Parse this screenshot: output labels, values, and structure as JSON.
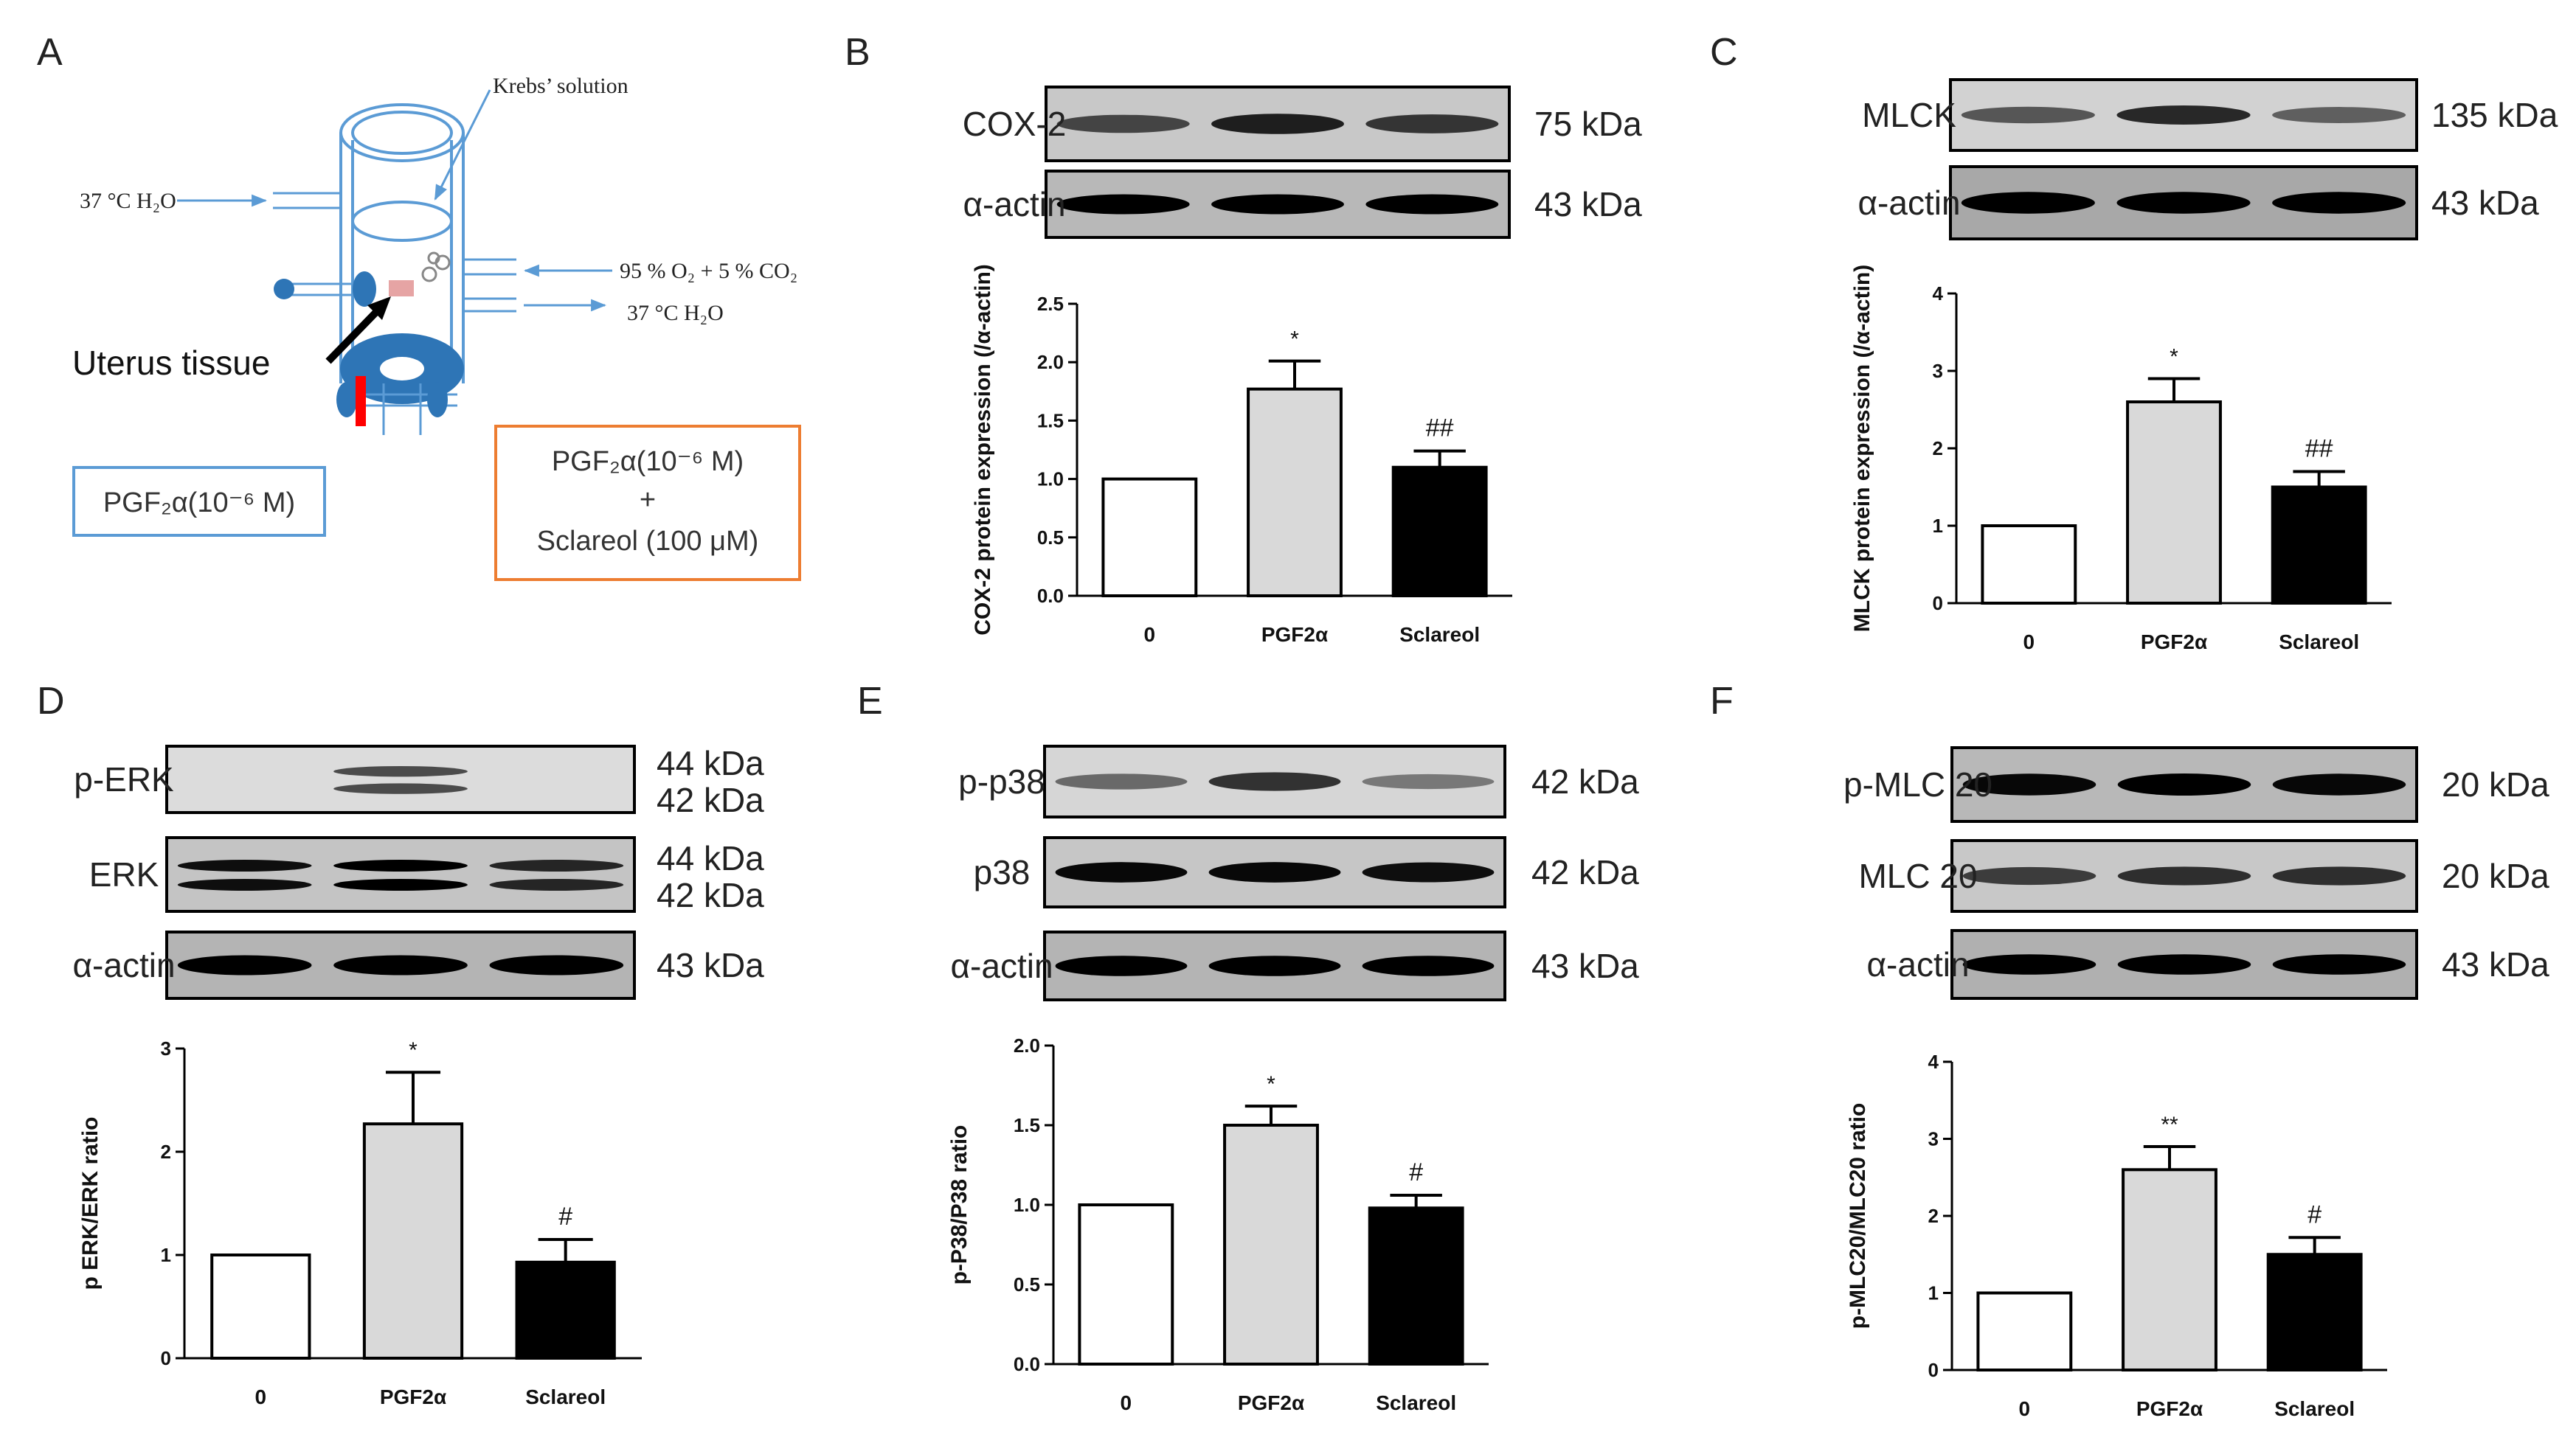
{
  "panel_letters": [
    "A",
    "B",
    "C",
    "D",
    "E",
    "F"
  ],
  "apparatus": {
    "krebs": "Krebs’ solution",
    "water_in": "37 °C H₂O",
    "gas": "95 % O₂ + 5 % CO₂",
    "water_out": "37 °C H₂O",
    "tissue": "Uterus tissue",
    "pgf_box": "PGF₂α(10⁻⁶ M)",
    "combo_line1": "PGF₂α(10⁻⁶ M)",
    "combo_plus": "+",
    "combo_line2": "Sclareol (100 μM)"
  },
  "colors": {
    "control_bar": "#ffffff",
    "pgf_bar": "#d9d9d9",
    "sclareol_bar": "#000000",
    "arrow_blue": "#5b9bd5",
    "pgf_box_border": "#5b9bd5",
    "combo_box_border": "#ed7d31",
    "blot_tissue_blue": "#2e75b6",
    "clamp_red": "#ff0000"
  },
  "blots": {
    "B": [
      {
        "label": "COX-2",
        "kda": [
          "75 kDa"
        ],
        "intensity": [
          0.55,
          0.8,
          0.65
        ],
        "double": false,
        "bg": "#c8c8c8"
      },
      {
        "label": "α-actin",
        "kda": [
          "43 kDa"
        ],
        "intensity": [
          1,
          1,
          1
        ],
        "double": false,
        "bg": "#b8b8b8"
      }
    ],
    "C": [
      {
        "label": "MLCK",
        "kda": [
          "135 kDa"
        ],
        "intensity": [
          0.45,
          0.75,
          0.4
        ],
        "double": false,
        "bg": "#d2d2d2"
      },
      {
        "label": "α-actin",
        "kda": [
          "43 kDa"
        ],
        "intensity": [
          1,
          1,
          1
        ],
        "double": false,
        "bg": "#a8a8a8"
      }
    ],
    "D": [
      {
        "label": "p-ERK",
        "kda": [
          "44 kDa",
          "42 kDa"
        ],
        "intensity": [
          0,
          0.55,
          0
        ],
        "double": true,
        "bg": "#dcdcdc"
      },
      {
        "label": "ERK",
        "kda": [
          "44 kDa",
          "42 kDa"
        ],
        "intensity": [
          0.9,
          1,
          0.75
        ],
        "double": true,
        "bg": "#c4c4c4"
      },
      {
        "label": "α-actin",
        "kda": [
          "43 kDa"
        ],
        "intensity": [
          1,
          1,
          1
        ],
        "double": false,
        "bg": "#b4b4b4"
      }
    ],
    "E": [
      {
        "label": "p-p38",
        "kda": [
          "42 kDa"
        ],
        "intensity": [
          0.35,
          0.7,
          0.25
        ],
        "double": false,
        "bg": "#d6d6d6"
      },
      {
        "label": "p38",
        "kda": [
          "42 kDa"
        ],
        "intensity": [
          0.95,
          0.95,
          0.9
        ],
        "double": false,
        "bg": "#c6c6c6"
      },
      {
        "label": "α-actin",
        "kda": [
          "43 kDa"
        ],
        "intensity": [
          1,
          1,
          1
        ],
        "double": false,
        "bg": "#b4b4b4"
      }
    ],
    "F": [
      {
        "label": "p-MLC 20",
        "kda": [
          "20 kDa"
        ],
        "intensity": [
          0.95,
          1,
          0.95
        ],
        "double": false,
        "bg": "#b8b8b8"
      },
      {
        "label": "MLC 20",
        "kda": [
          "20 kDa"
        ],
        "intensity": [
          0.6,
          0.7,
          0.7
        ],
        "double": false,
        "bg": "#c8c8c8"
      },
      {
        "label": "α-actin",
        "kda": [
          "43 kDa"
        ],
        "intensity": [
          1,
          1,
          1
        ],
        "double": false,
        "bg": "#b0b0b0"
      }
    ]
  },
  "chart_data": [
    {
      "panel": "B",
      "type": "bar",
      "categories": [
        "0",
        "PGF2α",
        "Sclareol"
      ],
      "values": [
        1.0,
        1.77,
        1.1
      ],
      "errors": [
        0,
        0.24,
        0.14
      ],
      "annotations": [
        "",
        "*",
        "##"
      ],
      "ylabel": "COX-2 protein expression (/α-actin)",
      "ylim": [
        0,
        2.5
      ],
      "yticks": [
        "0.0",
        "0.5",
        "1.0",
        "1.5",
        "2.0",
        "2.5"
      ]
    },
    {
      "panel": "C",
      "type": "bar",
      "categories": [
        "0",
        "PGF2α",
        "Sclareol"
      ],
      "values": [
        1.0,
        2.6,
        1.5
      ],
      "errors": [
        0,
        0.3,
        0.2
      ],
      "annotations": [
        "",
        "*",
        "##"
      ],
      "ylabel": "MLCK protein expression (/α-actin)",
      "ylim": [
        0,
        4
      ],
      "yticks": [
        "0",
        "1",
        "2",
        "3",
        "4"
      ]
    },
    {
      "panel": "D",
      "type": "bar",
      "categories": [
        "0",
        "PGF2α",
        "Sclareol"
      ],
      "values": [
        1.0,
        2.27,
        0.93
      ],
      "errors": [
        0,
        0.5,
        0.22
      ],
      "annotations": [
        "",
        "*",
        "#"
      ],
      "ylabel": "p ERK/ERK ratio",
      "ylim": [
        0,
        3
      ],
      "yticks": [
        "0",
        "1",
        "2",
        "3"
      ]
    },
    {
      "panel": "E",
      "type": "bar",
      "categories": [
        "0",
        "PGF2α",
        "Sclareol"
      ],
      "values": [
        1.0,
        1.5,
        0.98
      ],
      "errors": [
        0,
        0.12,
        0.08
      ],
      "annotations": [
        "",
        "*",
        "#"
      ],
      "ylabel": "p-P38/P38 ratio",
      "ylim": [
        0,
        2.0
      ],
      "yticks": [
        "0.0",
        "0.5",
        "1.0",
        "1.5",
        "2.0"
      ]
    },
    {
      "panel": "F",
      "type": "bar",
      "categories": [
        "0",
        "PGF2α",
        "Sclareol"
      ],
      "values": [
        1.0,
        2.6,
        1.5
      ],
      "errors": [
        0,
        0.3,
        0.22
      ],
      "annotations": [
        "",
        "**",
        "#"
      ],
      "ylabel": "p-MLC20/MLC20 ratio",
      "ylim": [
        0,
        4
      ],
      "yticks": [
        "0",
        "1",
        "2",
        "3",
        "4"
      ]
    }
  ]
}
